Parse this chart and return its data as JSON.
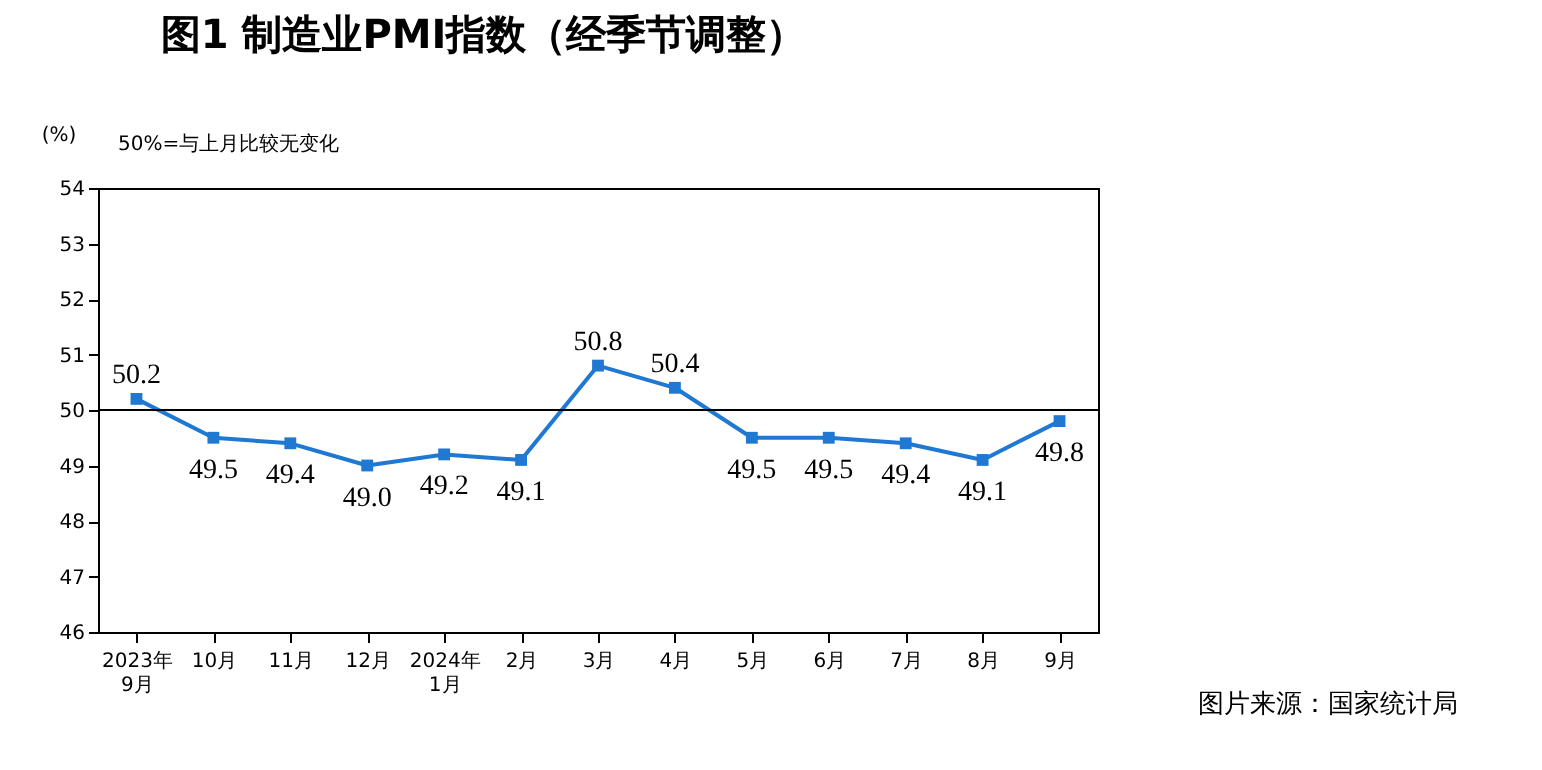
{
  "chart_data": {
    "type": "line",
    "title": "图1  制造业PMI指数（经季节调整）",
    "ylabel": "(%)",
    "annotations": [
      "50%=与上月比较无变化",
      "图片来源：国家统计局"
    ],
    "categories": [
      "2023年\n9月",
      "10月",
      "11月",
      "12月",
      "2024年\n1月",
      "2月",
      "3月",
      "4月",
      "5月",
      "6月",
      "7月",
      "8月",
      "9月"
    ],
    "series": [
      {
        "color": "#1f78d1",
        "values": [
          50.2,
          49.5,
          49.4,
          49.0,
          49.2,
          49.1,
          50.8,
          50.4,
          49.5,
          49.5,
          49.4,
          49.1,
          49.8
        ],
        "value_labels": [
          "50.2",
          "49.5",
          "49.4",
          "49.0",
          "49.2",
          "49.1",
          "50.8",
          "50.4",
          "49.5",
          "49.5",
          "49.4",
          "49.1",
          "49.8"
        ]
      }
    ],
    "ylim": [
      46,
      54
    ],
    "yticks": [
      46,
      47,
      48,
      49,
      50,
      51,
      52,
      53,
      54
    ],
    "ref_lines": [
      {
        "axis": "y",
        "value": 50,
        "color": "#000000"
      }
    ],
    "marker": "square",
    "grid": false
  }
}
